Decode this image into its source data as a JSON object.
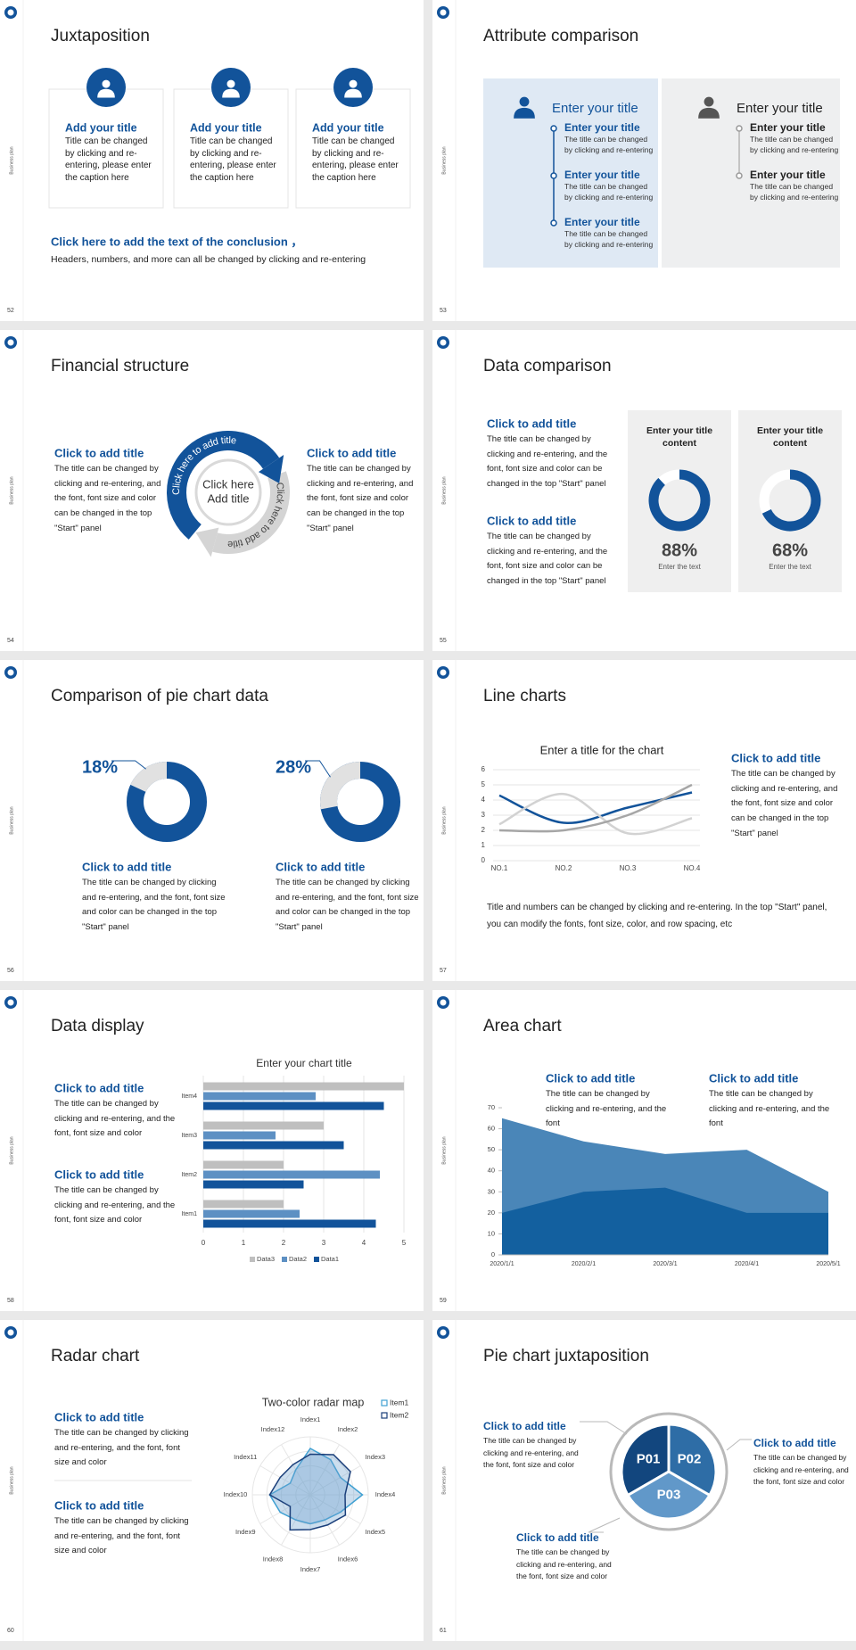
{
  "slides": [
    {
      "number": "52",
      "side": "Business plan",
      "title": "Juxtaposition",
      "cards": [
        {
          "title": "Add your title",
          "text": "Title can be changed by clicking and re-entering, please enter the caption here"
        },
        {
          "title": "Add your title",
          "text": "Title can be changed by clicking and re-entering, please enter the caption here"
        },
        {
          "title": "Add your title",
          "text": "Title can be changed by clicking and re-entering, please enter the caption here"
        }
      ],
      "conclusion": {
        "title": "Click here to add the text of the conclusion ，",
        "text": "Headers, numbers, and more can all be changed by clicking and re-entering"
      }
    },
    {
      "number": "53",
      "side": "Business plan",
      "title": "Attribute comparison",
      "panels": [
        {
          "heading": "Enter your title",
          "items": [
            {
              "title": "Enter your title",
              "text": "The title can be changed by clicking and re-entering"
            },
            {
              "title": "Enter your title",
              "text": "The title can be changed by clicking and re-entering"
            },
            {
              "title": "Enter your title",
              "text": "The title can be changed by clicking and re-entering"
            }
          ]
        },
        {
          "heading": "Enter your title",
          "items": [
            {
              "title": "Enter your title",
              "text": "The title can be changed by clicking and re-entering"
            },
            {
              "title": "Enter your title",
              "text": "The title can be changed by clicking and re-entering"
            }
          ]
        }
      ]
    },
    {
      "number": "54",
      "side": "Business plan",
      "title": "Financial structure",
      "blocks": [
        {
          "title": "Click to add title",
          "text": "The title can be changed by clicking and re-entering, and the font, font size and color can be changed in the top \"Start\" panel"
        },
        {
          "title": "Click to add title",
          "text": "The title can be changed by clicking and re-entering, and the font, font size and color can be changed in the top \"Start\" panel"
        }
      ],
      "center": [
        "Click here",
        "Add title"
      ],
      "ring_labels": [
        "Click here to add title",
        "Click here to add title"
      ]
    },
    {
      "number": "55",
      "side": "Business plan",
      "title": "Data comparison",
      "blocks": [
        {
          "title": "Click to add title",
          "text": "The title can be changed by clicking and re-entering, and the font, font size and color can be changed in the top \"Start\" panel"
        },
        {
          "title": "Click to add title",
          "text": "The title can be changed by clicking and re-entering, and the font, font size and color can be changed in the top \"Start\" panel"
        }
      ],
      "cards": [
        {
          "title": "Enter your title content",
          "value": 88,
          "value_label": "88%",
          "caption": "Enter the text"
        },
        {
          "title": "Enter your title content",
          "value": 68,
          "value_label": "68%",
          "caption": "Enter the text"
        }
      ]
    },
    {
      "number": "56",
      "side": "Business plan",
      "title": "Comparison of pie chart data",
      "pies": [
        {
          "value": 18,
          "value_label": "18%",
          "title": "Click to add title",
          "text": "The title can be changed by clicking and re-entering, and the font, font size and color can be changed in the top \"Start\" panel"
        },
        {
          "value": 28,
          "value_label": "28%",
          "title": "Click to add title",
          "text": "The title can be changed by clicking and re-entering, and the font, font size and color can be changed in the top \"Start\" panel"
        }
      ]
    },
    {
      "number": "57",
      "side": "Business plan",
      "title": "Line charts",
      "chart_data": {
        "type": "line",
        "title": "Enter a title for the chart",
        "categories": [
          "NO.1",
          "NO.2",
          "NO.3",
          "NO.4"
        ],
        "series": [
          {
            "color": "#12539a",
            "values": [
              4.3,
              2.5,
              3.5,
              4.5
            ]
          },
          {
            "color": "#d2d2d2",
            "values": [
              2.4,
              4.4,
              1.8,
              2.8
            ]
          },
          {
            "color": "#a6a6a6",
            "values": [
              2,
              2,
              3,
              5
            ]
          }
        ],
        "ylim": [
          0,
          6
        ],
        "yticks": [
          0,
          1,
          2,
          3,
          4,
          5,
          6
        ],
        "grid": true
      },
      "block": {
        "title": "Click to add title",
        "text": "The title can be changed by clicking and re-entering, and the font, font size and color can be changed in the top \"Start\" panel"
      },
      "note": "Title and numbers can be changed by clicking and re-entering. In the top \"Start\" panel, you can modify the fonts, font size, color, and row spacing, etc"
    },
    {
      "number": "58",
      "side": "Business plan",
      "title": "Data display",
      "chart_data": {
        "type": "bar",
        "orientation": "horizontal",
        "title": "Enter your chart title",
        "categories": [
          "Item1",
          "Item2",
          "Item3",
          "Item4"
        ],
        "series": [
          {
            "name": "Data1",
            "color": "#12539a",
            "values": [
              4.3,
              2.5,
              3.5,
              4.5
            ]
          },
          {
            "name": "Data2",
            "color": "#5d90c3",
            "values": [
              2.4,
              4.4,
              1.8,
              2.8
            ]
          },
          {
            "name": "Data3",
            "color": "#bfbfbf",
            "values": [
              2,
              2,
              3,
              5
            ]
          }
        ],
        "xlim": [
          0,
          5
        ],
        "xticks": [
          0,
          1,
          2,
          3,
          4,
          5
        ],
        "grid": true,
        "legend": "bottom"
      },
      "blocks": [
        {
          "title": "Click to add title",
          "text": "The title can be changed by clicking and re-entering, and the font, font size and color"
        },
        {
          "title": "Click to add title",
          "text": "The title can be changed by clicking and re-entering, and the font, font size and color"
        }
      ]
    },
    {
      "number": "59",
      "side": "Business plan",
      "title": "Area chart",
      "chart_data": {
        "type": "area",
        "categories": [
          "2020/1/1",
          "2020/2/1",
          "2020/3/1",
          "2020/4/1",
          "2020/5/1"
        ],
        "series": [
          {
            "color": "#4a86b8",
            "values": [
              65,
              54,
              48,
              50,
              30
            ]
          },
          {
            "color": "#13609f",
            "values": [
              20,
              30,
              32,
              20,
              20
            ]
          }
        ],
        "ylim": [
          0,
          70
        ],
        "yticks": [
          0,
          10,
          20,
          30,
          40,
          50,
          60,
          70
        ]
      },
      "blocks": [
        {
          "title": "Click to add title",
          "text": "The title can be changed by clicking and re-entering, and the font"
        },
        {
          "title": "Click to add title",
          "text": "The title can be changed by clicking and re-entering, and the font"
        }
      ]
    },
    {
      "number": "60",
      "side": "Business plan",
      "title": "Radar chart",
      "chart_data": {
        "type": "radar",
        "title": "Two-color radar map",
        "categories": [
          "Index1",
          "Index2",
          "Index3",
          "Index4",
          "Index5",
          "Index6",
          "Index7",
          "Index8",
          "Index9",
          "Index10",
          "Index11",
          "Index12"
        ],
        "series": [
          {
            "name": "Item1",
            "color": "#3fa0d2",
            "values": [
              4,
              3.5,
              3,
              4.5,
              3,
              2.5,
              2.5,
              2.5,
              3,
              3.5,
              2,
              2.5
            ]
          },
          {
            "name": "Item2",
            "color": "#1b3f7a",
            "values": [
              3.5,
              4,
              4,
              3,
              3.5,
              3,
              3,
              3.5,
              2,
              3.5,
              3,
              3
            ]
          }
        ],
        "rlim": [
          0,
          5
        ],
        "legend": "top-right"
      },
      "blocks": [
        {
          "title": "Click to add title",
          "text": "The title can be changed by clicking and re-entering, and the font, font size and color"
        },
        {
          "title": "Click to add title",
          "text": "The title can be changed by clicking and re-entering, and the font, font size and color"
        }
      ]
    },
    {
      "number": "61",
      "side": "Business plan",
      "title": "Pie chart juxtaposition",
      "segments": [
        "P01",
        "P02",
        "P03"
      ],
      "blocks": [
        {
          "title": "Click to add title",
          "text": "The title can be changed by clicking and re-entering, and the font, font size and color"
        },
        {
          "title": "Click to add title",
          "text": "The title can be changed by clicking and re-entering, and the font, font size and color"
        },
        {
          "title": "Click to add title",
          "text": "The title can be changed by clicking and re-entering, and the font, font size and color"
        }
      ]
    }
  ]
}
